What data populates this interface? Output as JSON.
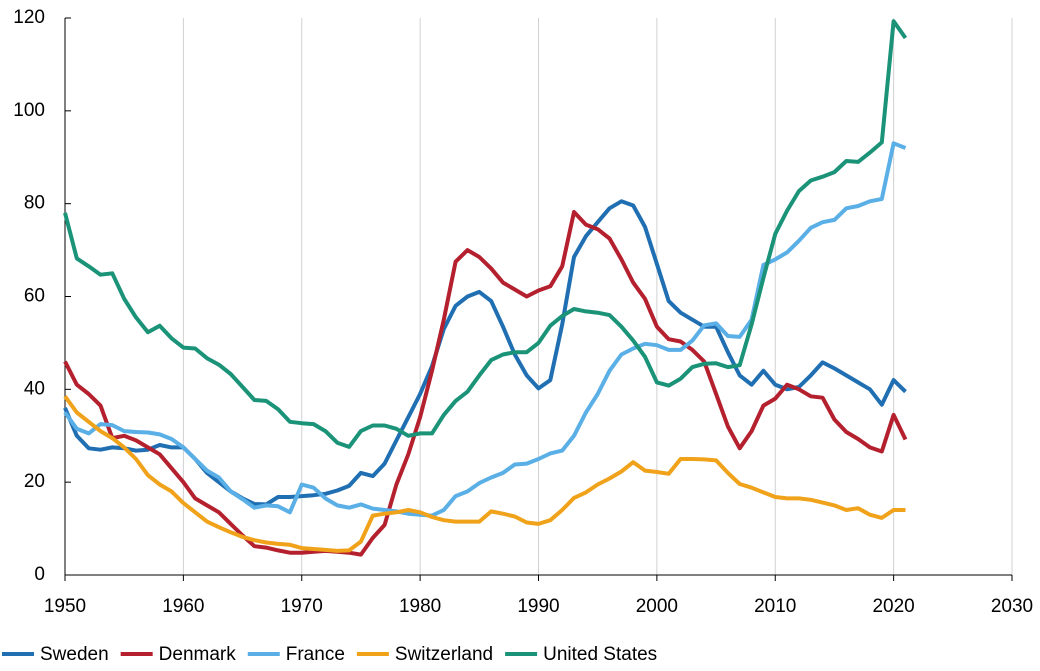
{
  "chart_data": {
    "type": "line",
    "x": [
      1950,
      1951,
      1952,
      1953,
      1954,
      1955,
      1956,
      1957,
      1958,
      1959,
      1960,
      1961,
      1962,
      1963,
      1964,
      1965,
      1966,
      1967,
      1968,
      1969,
      1970,
      1971,
      1972,
      1973,
      1974,
      1975,
      1976,
      1977,
      1978,
      1979,
      1980,
      1981,
      1982,
      1983,
      1984,
      1985,
      1986,
      1987,
      1988,
      1989,
      1990,
      1991,
      1992,
      1993,
      1994,
      1995,
      1996,
      1997,
      1998,
      1999,
      2000,
      2001,
      2002,
      2003,
      2004,
      2005,
      2006,
      2007,
      2008,
      2009,
      2010,
      2011,
      2012,
      2013,
      2014,
      2015,
      2016,
      2017,
      2018,
      2019,
      2020,
      2021
    ],
    "series": [
      {
        "name": "Sweden",
        "color": "#1f6fb2",
        "values": [
          36,
          30,
          27.3,
          27,
          27.5,
          27.3,
          26.8,
          27,
          28,
          27.5,
          27.5,
          25,
          22,
          20,
          18,
          16.5,
          15.3,
          15.2,
          16.8,
          16.8,
          17,
          17.2,
          17.5,
          18.2,
          19.2,
          22,
          21.3,
          24,
          29,
          34,
          39,
          45,
          53,
          58,
          60,
          61,
          59,
          53.5,
          47.5,
          43,
          40.2,
          42,
          54,
          68.5,
          73,
          76,
          79,
          80.5,
          79.6,
          75,
          67,
          59,
          56.5,
          55,
          53.5,
          53.5,
          48,
          43,
          41,
          44,
          41,
          40,
          40.5,
          43,
          45.8,
          44.5,
          43,
          41.5,
          40,
          36.7,
          42,
          39.5
        ]
      },
      {
        "name": "Denmark",
        "color": "#b5202e",
        "values": [
          46,
          41,
          39,
          36.5,
          29.5,
          30,
          29,
          27.5,
          26,
          23,
          20,
          16.5,
          15,
          13.5,
          11,
          8.5,
          6.2,
          5.9,
          5.3,
          4.8,
          4.8,
          5,
          5.2,
          5,
          4.8,
          4.4,
          8,
          10.8,
          19.5,
          26,
          34,
          44,
          55,
          67.5,
          70,
          68.5,
          66,
          63,
          61.5,
          60,
          61.3,
          62.2,
          66.5,
          78.2,
          75.5,
          74.5,
          72.5,
          68,
          63,
          59.5,
          53.5,
          50.8,
          50.3,
          48.5,
          46,
          39,
          32,
          27.3,
          31,
          36.5,
          38,
          41,
          40,
          38.5,
          38.2,
          33.5,
          30.8,
          29.3,
          27.5,
          26.6,
          34.5,
          29.2
        ]
      },
      {
        "name": "France",
        "color": "#5aafe6",
        "values": [
          35,
          31.5,
          30.5,
          32.5,
          32.3,
          31,
          30.8,
          30.7,
          30.3,
          29.3,
          27.5,
          25,
          22.5,
          21,
          18,
          16.3,
          14.5,
          15,
          14.8,
          13.5,
          19.5,
          18.8,
          16.5,
          15,
          14.5,
          15.2,
          14.3,
          14,
          13.7,
          13.2,
          13,
          12.8,
          14,
          17,
          18,
          19.8,
          21,
          22,
          23.8,
          24,
          25,
          26.2,
          26.8,
          30,
          35,
          39,
          44,
          47.5,
          48.8,
          49.8,
          49.5,
          48.5,
          48.5,
          50.5,
          53.8,
          54.2,
          51.5,
          51.3,
          55,
          66.8,
          68,
          69.5,
          72,
          74.8,
          76,
          76.5,
          79,
          79.5,
          80.5,
          81,
          93,
          92
        ]
      },
      {
        "name": "Switzerland",
        "color": "#f0a21a",
        "values": [
          38.5,
          35,
          33,
          31,
          29.5,
          27.5,
          25,
          21.5,
          19.5,
          18,
          15.5,
          13.5,
          11.5,
          10.3,
          9.2,
          8.2,
          7.5,
          7,
          6.7,
          6.5,
          5.8,
          5.6,
          5.4,
          5.2,
          5.3,
          7.2,
          12.8,
          13.2,
          13.5,
          14,
          13.5,
          12.5,
          11.8,
          11.5,
          11.5,
          11.5,
          13.7,
          13.2,
          12.6,
          11.3,
          11,
          11.8,
          14,
          16.6,
          17.8,
          19.5,
          20.8,
          22.3,
          24.3,
          22.5,
          22.2,
          21.8,
          25,
          25,
          24.9,
          24.7,
          22,
          19.6,
          18.8,
          17.8,
          16.8,
          16.5,
          16.5,
          16.2,
          15.6,
          15,
          14,
          14.4,
          13,
          12.3,
          14,
          14
        ]
      },
      {
        "name": "United States",
        "color": "#1a9378",
        "values": [
          78,
          68.2,
          66.5,
          64.7,
          65,
          59.5,
          55.5,
          52.3,
          53.7,
          51,
          49,
          48.8,
          46.7,
          45.3,
          43.3,
          40.5,
          37.7,
          37.5,
          35.7,
          33,
          32.7,
          32.5,
          31,
          28.5,
          27.6,
          31,
          32.2,
          32.2,
          31.5,
          30,
          30.5,
          30.5,
          34.5,
          37.5,
          39.5,
          43,
          46.3,
          47.5,
          48,
          48,
          50,
          53.7,
          55.8,
          57.3,
          56.8,
          56.5,
          56,
          53.5,
          50.5,
          47,
          41.5,
          40.8,
          42.3,
          44.8,
          45.5,
          45.6,
          44.8,
          45.2,
          54,
          64,
          73.5,
          78.5,
          82.7,
          85,
          85.8,
          86.8,
          89.2,
          89,
          91,
          93.2,
          119.3,
          115.7
        ]
      }
    ],
    "xlim": [
      1950,
      2030
    ],
    "xticks": [
      1950,
      1960,
      1970,
      1980,
      1990,
      2000,
      2010,
      2020,
      2030
    ],
    "ylim": [
      0,
      120
    ],
    "yticks": [
      0,
      20,
      40,
      60,
      80,
      100,
      120
    ],
    "grid": "x",
    "legend": "bottom"
  }
}
